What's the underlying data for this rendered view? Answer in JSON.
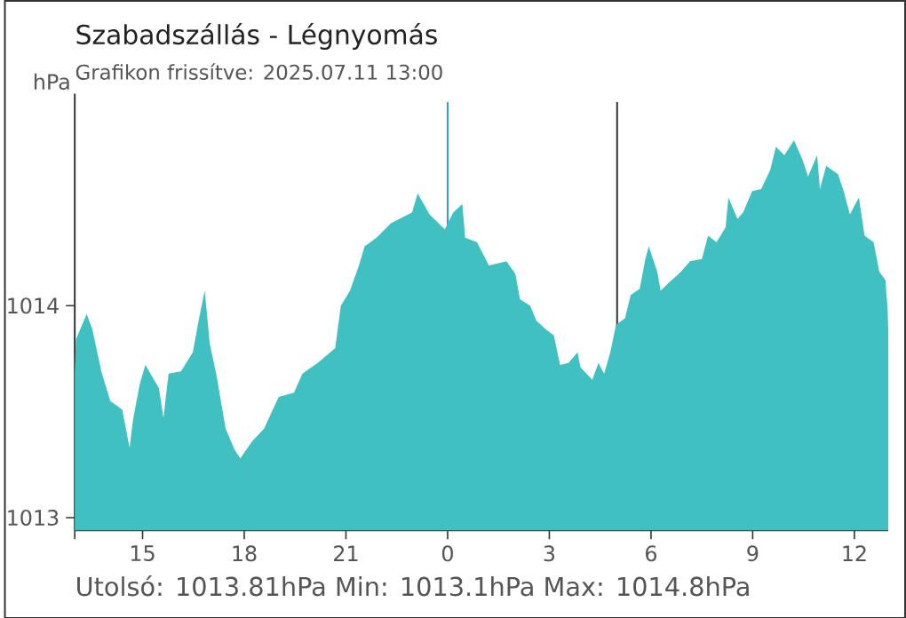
{
  "chart_data": {
    "type": "area",
    "title": "Szabadszállás - Légnyomás",
    "subtitle": "Grafikon frissítve: 2025.07.11 13:00",
    "ylabel": "hPa",
    "annotations": [
      "Utolsó: 1013.81hPa  Min: 1013.1hPa  Max: 1014.8hPa"
    ],
    "x": [
      "2025-07-10T13:00",
      "2025-07-10T13:02",
      "2025-07-10T13:21",
      "2025-07-10T13:31",
      "2025-07-10T13:47",
      "2025-07-10T14:03",
      "2025-07-10T14:24",
      "2025-07-10T14:37",
      "2025-07-10T14:43",
      "2025-07-10T14:55",
      "2025-07-10T15:05",
      "2025-07-10T15:29",
      "2025-07-10T15:37",
      "2025-07-10T15:46",
      "2025-07-10T16:08",
      "2025-07-10T16:29",
      "2025-07-10T16:40",
      "2025-07-10T16:50",
      "2025-07-10T16:59",
      "2025-07-10T17:11",
      "2025-07-10T17:27",
      "2025-07-10T17:43",
      "2025-07-10T17:53",
      "2025-07-10T18:14",
      "2025-07-10T18:35",
      "2025-07-10T19:01",
      "2025-07-10T19:28",
      "2025-07-10T19:43",
      "2025-07-10T20:10",
      "2025-07-10T20:41",
      "2025-07-10T20:51",
      "2025-07-10T21:07",
      "2025-07-10T21:23",
      "2025-07-10T21:33",
      "2025-07-10T21:54",
      "2025-07-10T22:20",
      "2025-07-10T22:57",
      "2025-07-10T23:07",
      "2025-07-10T23:28",
      "2025-07-10T23:55",
      "2025-07-11T00:10",
      "2025-07-11T00:26",
      "2025-07-11T00:31",
      "2025-07-11T00:52",
      "2025-07-11T01:13",
      "2025-07-11T01:44",
      "2025-07-11T02:00",
      "2025-07-11T02:08",
      "2025-07-11T02:26",
      "2025-07-11T02:37",
      "2025-07-11T02:53",
      "2025-07-11T03:08",
      "2025-07-11T03:19",
      "2025-07-11T03:34",
      "2025-07-11T03:50",
      "2025-07-11T03:55",
      "2025-07-11T04:16",
      "2025-07-11T04:27",
      "2025-07-11T04:37",
      "2025-07-11T04:48",
      "2025-07-11T04:58",
      "2025-07-11T05:14",
      "2025-07-11T05:24",
      "2025-07-11T05:40",
      "2025-07-11T05:50",
      "2025-07-11T05:56",
      "2025-07-11T06:11",
      "2025-07-11T06:17",
      "2025-07-11T06:32",
      "2025-07-11T06:53",
      "2025-07-11T07:09",
      "2025-07-11T07:30",
      "2025-07-11T07:41",
      "2025-07-11T07:56",
      "2025-07-11T08:12",
      "2025-07-11T08:17",
      "2025-07-11T08:33",
      "2025-07-11T08:43",
      "2025-07-11T08:59",
      "2025-07-11T09:15",
      "2025-07-11T09:31",
      "2025-07-11T09:41",
      "2025-07-11T09:56",
      "2025-07-11T10:13",
      "2025-07-11T10:28",
      "2025-07-11T10:38",
      "2025-07-11T10:54",
      "2025-07-11T10:59",
      "2025-07-11T11:10",
      "2025-07-11T11:31",
      "2025-07-11T11:41",
      "2025-07-11T11:52",
      "2025-07-11T12:08",
      "2025-07-11T12:18",
      "2025-07-11T12:34",
      "2025-07-11T12:44",
      "2025-07-11T12:55",
      "2025-07-11T12:59",
      "2025-07-11T13:00"
    ],
    "values": [
      1013.68,
      1013.84,
      1013.96,
      1013.89,
      1013.69,
      1013.55,
      1013.51,
      1013.33,
      1013.46,
      1013.63,
      1013.72,
      1013.61,
      1013.47,
      1013.68,
      1013.69,
      1013.78,
      1013.94,
      1014.07,
      1013.82,
      1013.67,
      1013.42,
      1013.32,
      1013.28,
      1013.36,
      1013.42,
      1013.57,
      1013.59,
      1013.68,
      1013.73,
      1013.8,
      1014.0,
      1014.07,
      1014.19,
      1014.28,
      1014.32,
      1014.39,
      1014.44,
      1014.53,
      1014.43,
      1014.36,
      1014.44,
      1014.48,
      1014.32,
      1014.3,
      1014.19,
      1014.21,
      1014.15,
      1014.03,
      1014.0,
      1013.93,
      1013.89,
      1013.86,
      1013.72,
      1013.73,
      1013.78,
      1013.71,
      1013.65,
      1013.73,
      1013.68,
      1013.78,
      1013.91,
      1013.94,
      1014.05,
      1014.08,
      1014.22,
      1014.28,
      1014.16,
      1014.07,
      1014.11,
      1014.16,
      1014.21,
      1014.22,
      1014.33,
      1014.3,
      1014.37,
      1014.51,
      1014.41,
      1014.44,
      1014.54,
      1014.55,
      1014.64,
      1014.75,
      1014.71,
      1014.78,
      1014.69,
      1014.61,
      1014.71,
      1014.55,
      1014.66,
      1014.62,
      1014.54,
      1014.43,
      1014.51,
      1014.33,
      1014.3,
      1014.16,
      1014.12,
      1013.97,
      1013.88
    ],
    "color": "#41c0c1",
    "xlim": [
      "2025-07-10T13:00",
      "2025-07-11T13:00"
    ],
    "ylim": [
      1012.94,
      1015
    ],
    "xticks": [
      {
        "value": "2025-07-10T13:00",
        "label": null
      },
      {
        "value": "2025-07-10T15:00",
        "label": "15"
      },
      {
        "value": "2025-07-10T18:00",
        "label": "18"
      },
      {
        "value": "2025-07-10T21:00",
        "label": "21"
      },
      {
        "value": "2025-07-11T00:00",
        "label": "0"
      },
      {
        "value": "2025-07-11T03:00",
        "label": "3"
      },
      {
        "value": "2025-07-11T06:00",
        "label": "6"
      },
      {
        "value": "2025-07-11T09:00",
        "label": "9"
      },
      {
        "value": "2025-07-11T12:00",
        "label": "12"
      }
    ],
    "yticks": [
      1013,
      1014
    ],
    "ref_lines": [
      {
        "axis": "x",
        "value": "2025-07-11T00:00",
        "color": "#3399dd"
      },
      {
        "axis": "x",
        "value": "2025-07-11T05:00",
        "color": "#333333"
      }
    ],
    "marker": "none"
  }
}
